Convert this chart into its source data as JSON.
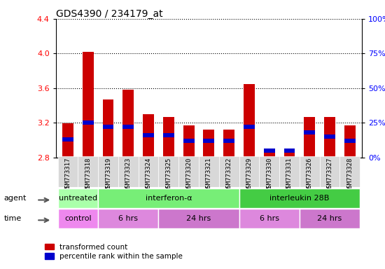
{
  "title": "GDS4390 / 234179_at",
  "samples": [
    "GSM773317",
    "GSM773318",
    "GSM773319",
    "GSM773323",
    "GSM773324",
    "GSM773325",
    "GSM773320",
    "GSM773321",
    "GSM773322",
    "GSM773329",
    "GSM773330",
    "GSM773331",
    "GSM773326",
    "GSM773327",
    "GSM773328"
  ],
  "red_values": [
    3.19,
    4.02,
    3.47,
    3.58,
    3.3,
    3.27,
    3.17,
    3.12,
    3.12,
    3.65,
    2.88,
    2.88,
    3.27,
    3.27,
    3.17
  ],
  "blue_values_pct": [
    13,
    25,
    22,
    22,
    16,
    16,
    12,
    12,
    12,
    22,
    5,
    5,
    18,
    15,
    12
  ],
  "y_min": 2.8,
  "y_max": 4.4,
  "y_ticks": [
    2.8,
    3.2,
    3.6,
    4.0,
    4.4
  ],
  "y2_ticks": [
    0,
    25,
    50,
    75,
    100
  ],
  "agent_groups": [
    {
      "label": "untreated",
      "start": 0,
      "end": 2,
      "color": "#aaffaa"
    },
    {
      "label": "interferon-α",
      "start": 2,
      "end": 9,
      "color": "#77ee77"
    },
    {
      "label": "interleukin 28B",
      "start": 9,
      "end": 15,
      "color": "#44cc44"
    }
  ],
  "time_groups": [
    {
      "label": "control",
      "start": 0,
      "end": 2,
      "color": "#ee88ee"
    },
    {
      "label": "6 hrs",
      "start": 2,
      "end": 5,
      "color": "#dd88dd"
    },
    {
      "label": "24 hrs",
      "start": 5,
      "end": 9,
      "color": "#cc77cc"
    },
    {
      "label": "6 hrs",
      "start": 9,
      "end": 12,
      "color": "#dd88dd"
    },
    {
      "label": "24 hrs",
      "start": 12,
      "end": 15,
      "color": "#cc77cc"
    }
  ],
  "bar_width": 0.55,
  "red_color": "#cc0000",
  "blue_color": "#0000cc"
}
